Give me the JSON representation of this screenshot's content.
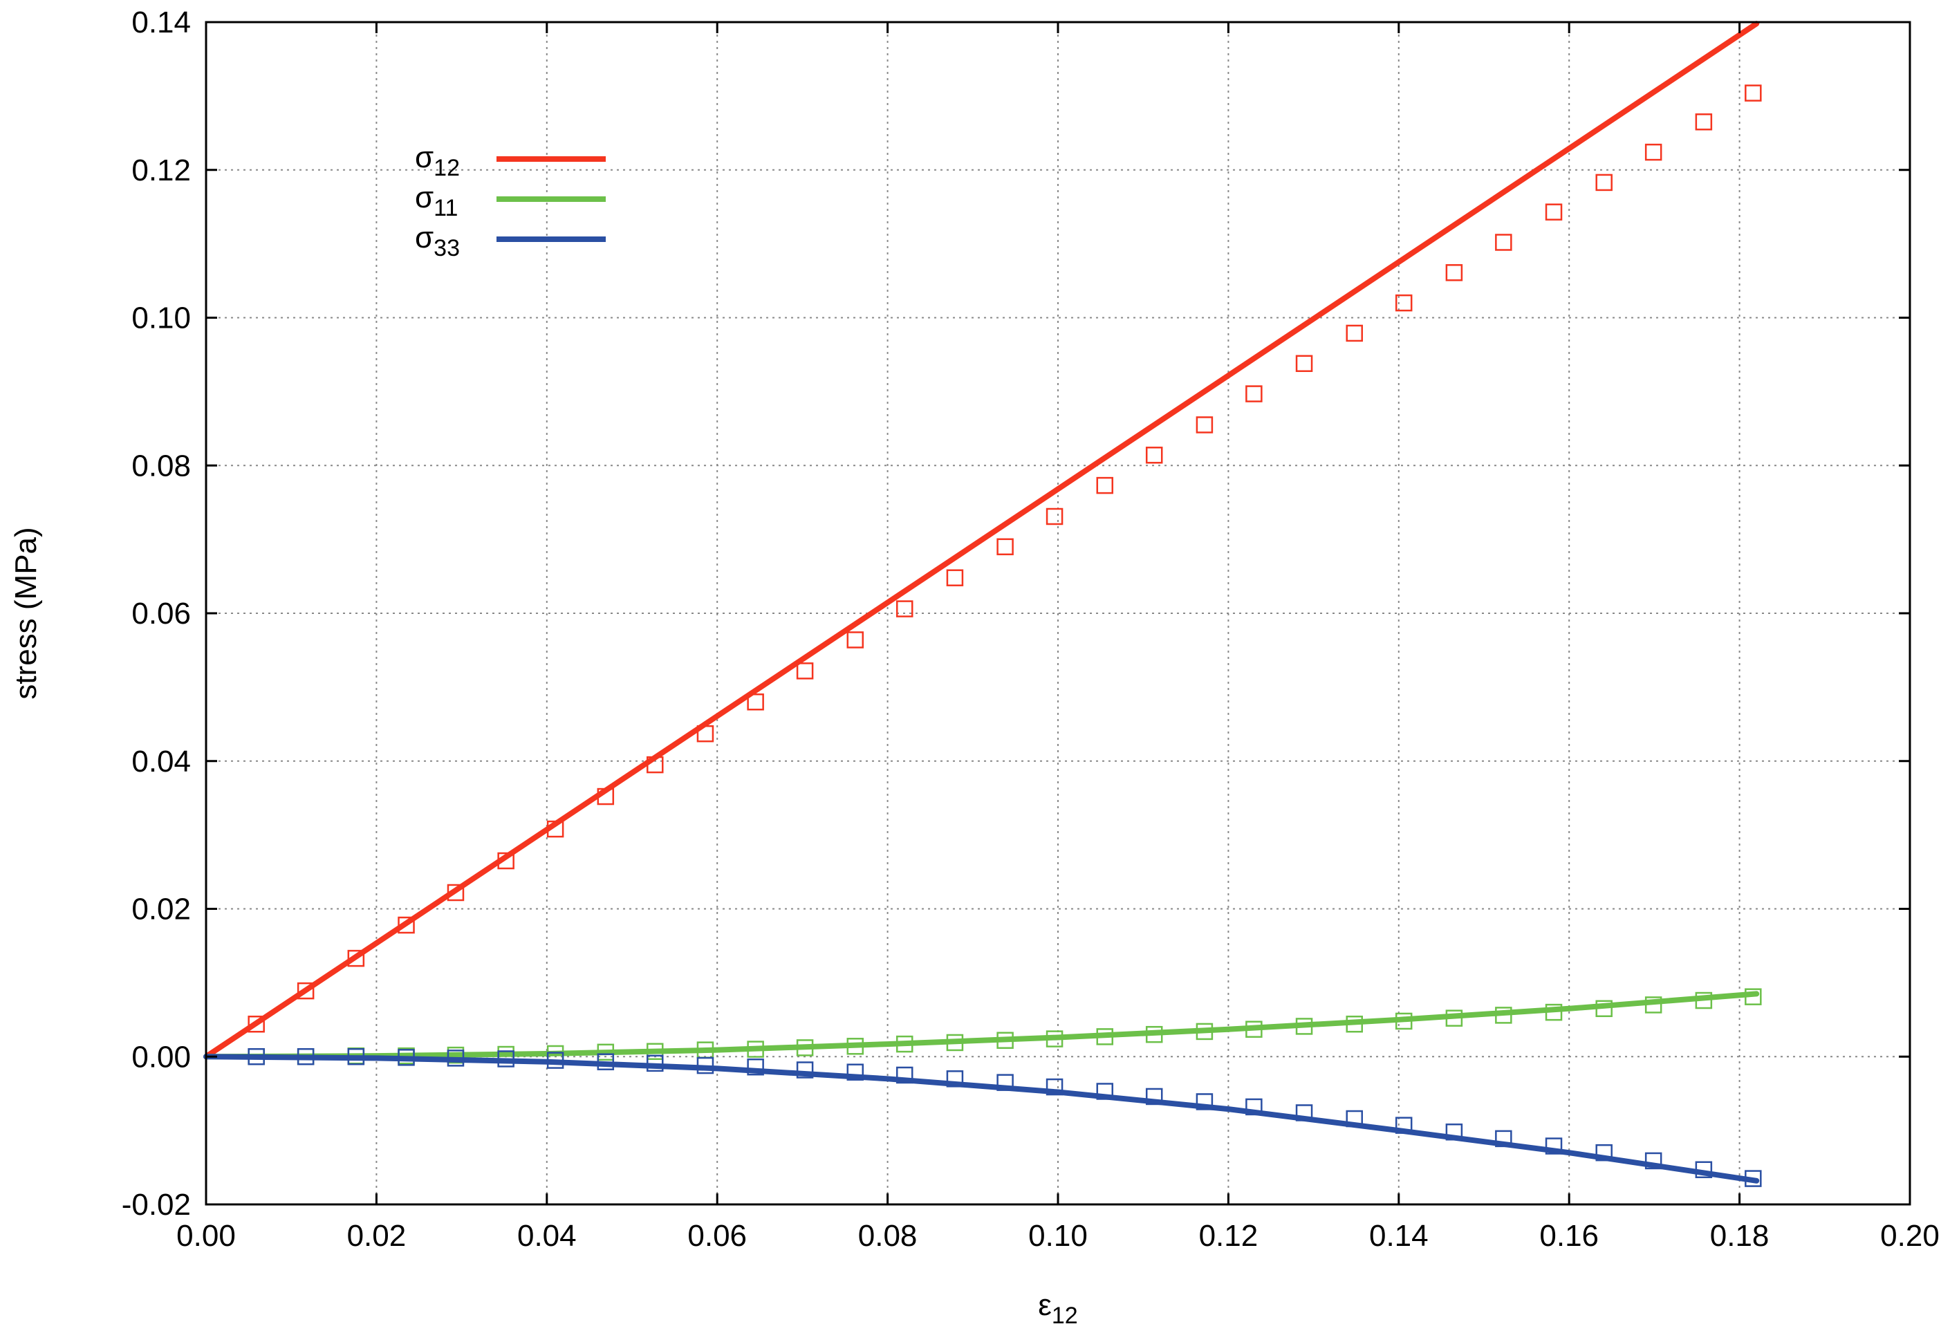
{
  "chart_data": {
    "type": "line",
    "title": "",
    "xlabel": "ε",
    "xlabel_sub": "12",
    "ylabel": "stress (MPa)",
    "xlim": [
      0.0,
      0.2
    ],
    "ylim": [
      -0.02,
      0.14
    ],
    "xticks": [
      "0.00",
      "0.02",
      "0.04",
      "0.06",
      "0.08",
      "0.10",
      "0.12",
      "0.14",
      "0.16",
      "0.18",
      "0.20"
    ],
    "yticks": [
      "-0.02",
      "0.00",
      "0.02",
      "0.04",
      "0.06",
      "0.08",
      "0.10",
      "0.12",
      "0.14"
    ],
    "xtick_values": [
      0.0,
      0.02,
      0.04,
      0.06,
      0.08,
      0.1,
      0.12,
      0.14,
      0.16,
      0.18,
      0.2
    ],
    "ytick_values": [
      -0.02,
      0.0,
      0.02,
      0.04,
      0.06,
      0.08,
      0.1,
      0.12,
      0.14
    ],
    "grid": true,
    "legend_position": "top-left",
    "series": [
      {
        "name": "σ",
        "name_sub": "12",
        "color": "#f5351f",
        "line_x": [
          0.0,
          0.182
        ],
        "line_y": [
          0.0,
          0.1398
        ],
        "marker": "square",
        "marker_x": [
          0.0059,
          0.0117,
          0.0176,
          0.0235,
          0.0293,
          0.0352,
          0.041,
          0.0469,
          0.0527,
          0.0586,
          0.0645,
          0.0703,
          0.0762,
          0.082,
          0.0879,
          0.0938,
          0.0996,
          0.1055,
          0.1113,
          0.1172,
          0.123,
          0.1289,
          0.1348,
          0.1406,
          0.1465,
          0.1523,
          0.1582,
          0.1641,
          0.1699,
          0.1758,
          0.1816
        ],
        "marker_y": [
          0.0044,
          0.0089,
          0.0133,
          0.0178,
          0.0222,
          0.0265,
          0.0308,
          0.0352,
          0.0395,
          0.0437,
          0.048,
          0.0522,
          0.0564,
          0.0606,
          0.0648,
          0.069,
          0.0731,
          0.0773,
          0.0814,
          0.0855,
          0.0897,
          0.0938,
          0.0979,
          0.102,
          0.1061,
          0.1102,
          0.1143,
          0.1183,
          0.1224,
          0.1265,
          0.1304
        ]
      },
      {
        "name": "σ",
        "name_sub": "11",
        "color": "#6cc049",
        "line_x": [
          0.0,
          0.02,
          0.04,
          0.06,
          0.08,
          0.1,
          0.12,
          0.14,
          0.16,
          0.182
        ],
        "line_y": [
          0.0,
          0.0001,
          0.0004,
          0.0009,
          0.0017,
          0.0026,
          0.0037,
          0.005,
          0.0065,
          0.0085
        ],
        "marker": "square",
        "marker_x": [
          0.0059,
          0.0117,
          0.0176,
          0.0235,
          0.0293,
          0.0352,
          0.041,
          0.0469,
          0.0527,
          0.0586,
          0.0645,
          0.0703,
          0.0762,
          0.082,
          0.0879,
          0.0938,
          0.0996,
          0.1055,
          0.1113,
          0.1172,
          0.123,
          0.1289,
          0.1348,
          0.1406,
          0.1465,
          0.1523,
          0.1582,
          0.1641,
          0.1699,
          0.1758,
          0.1816
        ],
        "marker_y": [
          0.0,
          0.0,
          0.0001,
          0.0001,
          0.0002,
          0.0003,
          0.0004,
          0.0006,
          0.0007,
          0.0009,
          0.001,
          0.0012,
          0.0014,
          0.0017,
          0.0019,
          0.0022,
          0.0024,
          0.0027,
          0.003,
          0.0034,
          0.0037,
          0.0041,
          0.0044,
          0.0048,
          0.0052,
          0.0056,
          0.006,
          0.0065,
          0.007,
          0.0076,
          0.0081
        ]
      },
      {
        "name": "σ",
        "name_sub": "33",
        "color": "#2a4fa3",
        "line_x": [
          0.0,
          0.02,
          0.04,
          0.06,
          0.08,
          0.1,
          0.12,
          0.14,
          0.16,
          0.182
        ],
        "line_y": [
          0.0,
          -0.0002,
          -0.0007,
          -0.0016,
          -0.003,
          -0.0048,
          -0.0071,
          -0.01,
          -0.013,
          -0.0168
        ],
        "marker": "square",
        "marker_x": [
          0.0059,
          0.0117,
          0.0176,
          0.0235,
          0.0293,
          0.0352,
          0.041,
          0.0469,
          0.0527,
          0.0586,
          0.0645,
          0.0703,
          0.0762,
          0.082,
          0.0879,
          0.0938,
          0.0996,
          0.1055,
          0.1113,
          0.1172,
          0.123,
          0.1289,
          0.1348,
          0.1406,
          0.1465,
          0.1523,
          0.1582,
          0.1641,
          0.1699,
          0.1758,
          0.1816
        ],
        "marker_y": [
          0.0,
          0.0,
          0.0,
          -0.0001,
          -0.0002,
          -0.0003,
          -0.0005,
          -0.0007,
          -0.0009,
          -0.0012,
          -0.0014,
          -0.0018,
          -0.0021,
          -0.0025,
          -0.003,
          -0.0035,
          -0.0041,
          -0.0047,
          -0.0054,
          -0.0061,
          -0.0068,
          -0.0076,
          -0.0084,
          -0.0093,
          -0.0102,
          -0.0111,
          -0.0121,
          -0.013,
          -0.0141,
          -0.0153,
          -0.0165
        ]
      }
    ]
  }
}
